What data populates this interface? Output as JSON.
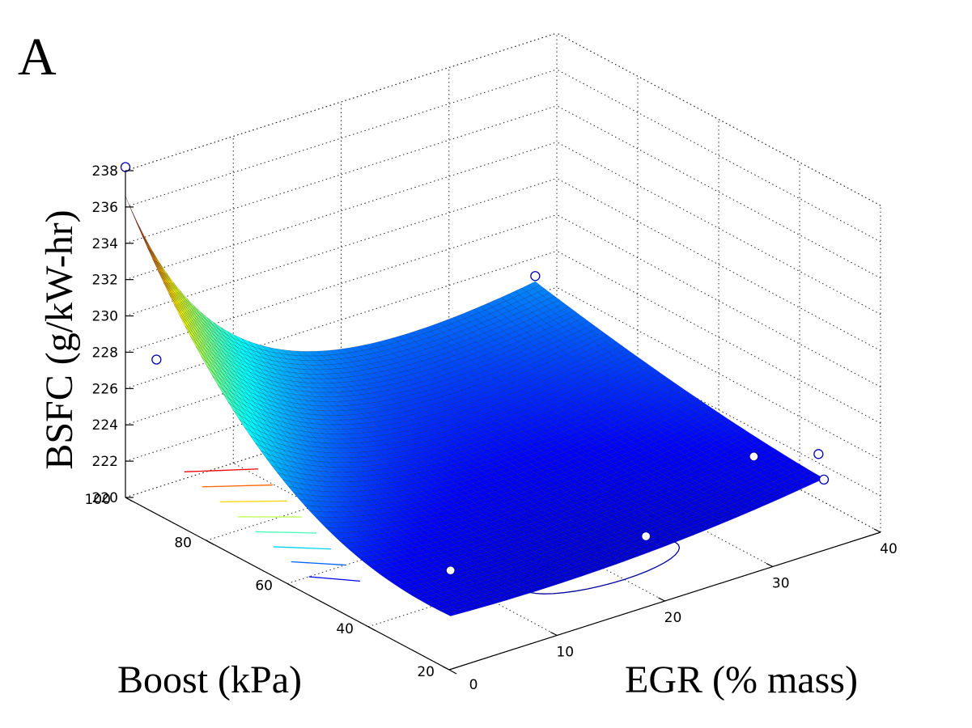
{
  "panel_label": "A",
  "chart_data": {
    "type": "surface3d",
    "title": "",
    "xlabel": "Boost (kPa)",
    "ylabel": "EGR (% mass)",
    "zlabel": "BSFC (g/kW-hr)",
    "xlim": [
      20,
      100
    ],
    "ylim": [
      0,
      40
    ],
    "zlim": [
      220,
      238
    ],
    "x_ticks": [
      "20",
      "40",
      "60",
      "80",
      "100"
    ],
    "y_ticks": [
      "0",
      "10",
      "20",
      "30",
      "40"
    ],
    "z_ticks": [
      "220",
      "222",
      "224",
      "226",
      "228",
      "230",
      "232",
      "234",
      "236",
      "238"
    ],
    "grid": true,
    "colormap": "jet",
    "colors": [
      "#00008f",
      "#0000ff",
      "#00ffff",
      "#ffff00",
      "#ff0000",
      "#800000"
    ],
    "experimental_points": [
      {
        "boost": 100,
        "egr": 0,
        "bsfc": 238.2
      },
      {
        "boost": 100,
        "egr": 38,
        "bsfc": 225.0
      },
      {
        "boost": 95,
        "egr": 1,
        "bsfc": 228.0
      },
      {
        "boost": 25,
        "egr": 2,
        "bsfc": 224.5
      },
      {
        "boost": 30,
        "egr": 32,
        "bsfc": 224.5
      },
      {
        "boost": 30,
        "egr": 22,
        "bsfc": 222.0
      },
      {
        "boost": 30,
        "egr": 38,
        "bsfc": 223.5
      },
      {
        "boost": 30,
        "egr": 38.5,
        "bsfc": 222.0
      }
    ],
    "contour_levels": [
      222,
      224,
      226,
      228,
      230,
      232,
      234,
      236
    ],
    "min_contour_value": 221
  }
}
